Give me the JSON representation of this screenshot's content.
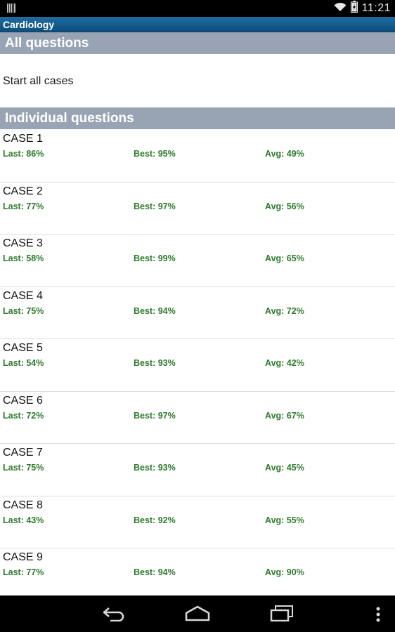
{
  "status_bar": {
    "time": "11:21",
    "icons": [
      "notification-barcode-icon",
      "wifi-icon",
      "battery-charging-icon"
    ]
  },
  "app": {
    "title": "Cardiology"
  },
  "sections": {
    "all_questions": {
      "header": "All questions",
      "start_label": "Start all cases"
    },
    "individual_questions": {
      "header": "Individual questions"
    }
  },
  "cases": [
    {
      "title": "CASE 1",
      "last": "Last: 86%",
      "best": "Best: 95%",
      "avg": "Avg: 49%"
    },
    {
      "title": "CASE 2",
      "last": "Last: 77%",
      "best": "Best: 97%",
      "avg": "Avg: 56%"
    },
    {
      "title": "CASE 3",
      "last": "Last: 58%",
      "best": "Best: 99%",
      "avg": "Avg: 65%"
    },
    {
      "title": "CASE 4",
      "last": "Last: 75%",
      "best": "Best: 94%",
      "avg": "Avg: 72%"
    },
    {
      "title": "CASE 5",
      "last": "Last: 54%",
      "best": "Best: 93%",
      "avg": "Avg: 42%"
    },
    {
      "title": "CASE 6",
      "last": "Last: 72%",
      "best": "Best: 97%",
      "avg": "Avg: 67%"
    },
    {
      "title": "CASE 7",
      "last": "Last: 75%",
      "best": "Best: 93%",
      "avg": "Avg: 45%"
    },
    {
      "title": "CASE 8",
      "last": "Last: 43%",
      "best": "Best: 92%",
      "avg": "Avg: 55%"
    },
    {
      "title": "CASE 9",
      "last": "Last: 77%",
      "best": "Best: 94%",
      "avg": "Avg: 90%"
    }
  ],
  "nav_bar": {
    "icons": [
      "back-icon",
      "home-icon",
      "recent-apps-icon",
      "overflow-menu-icon"
    ]
  },
  "colors": {
    "title_bar": "#0d4d7c",
    "section_header": "#98a4b3",
    "stat_text": "#2f7a2f"
  }
}
